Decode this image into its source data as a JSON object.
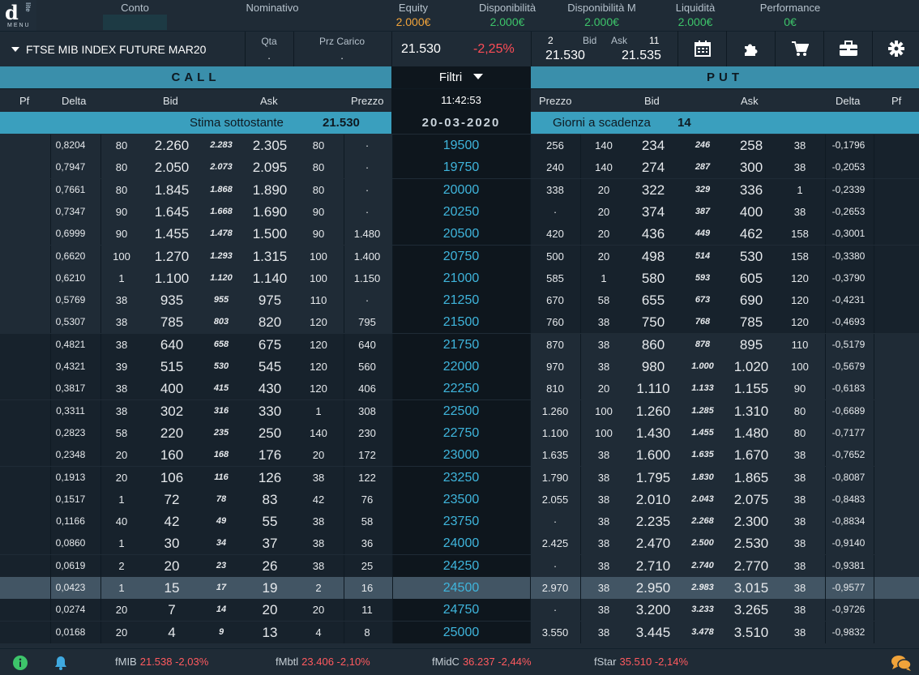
{
  "logo": {
    "letter": "d",
    "side": "lite",
    "menu": "MENU"
  },
  "account": [
    {
      "label": "Conto",
      "value": ""
    },
    {
      "label": "Nominativo",
      "value": ""
    },
    {
      "label": "Equity",
      "value": "2.000€"
    },
    {
      "label": "Disponibilità",
      "value": "2.000€"
    },
    {
      "label": "Disponibilità M",
      "value": "2.000€"
    },
    {
      "label": "Liquidità",
      "value": "2.000€"
    },
    {
      "label": "Performance",
      "value": "0€"
    }
  ],
  "colors": {
    "equity": "#f0a33a",
    "green": "#3dc46a",
    "red": "#ff4d57",
    "accent": "#3a8fab",
    "strike": "#3fb5dc"
  },
  "instrument": {
    "name": "FTSE MIB INDEX FUTURE MAR20",
    "qta_label": "Qta",
    "qta_value": ".",
    "prz_label": "Prz Carico",
    "prz_value": ".",
    "last": "21.530",
    "change": "-2,25%",
    "bid_qty": "2",
    "bid_label": "Bid",
    "ask_label": "Ask",
    "ask_qty": "11",
    "bid": "21.530",
    "ask": "21.535"
  },
  "tools": [
    "calendar-icon",
    "puzzle-icon",
    "cart-icon",
    "briefcase-icon",
    "gear-icon"
  ],
  "headers": {
    "call": "CALL",
    "filtri": "Filtri",
    "put": "PUT",
    "time": "11:42:53"
  },
  "columns": {
    "pf": "Pf",
    "delta": "Delta",
    "bid": "Bid",
    "ask": "Ask",
    "prezzo": "Prezzo",
    "prezzo_put": "Prezzo",
    "bid_put": "Bid",
    "ask_put": "Ask",
    "delta_put": "Delta",
    "pf_put": "Pf"
  },
  "info": {
    "stima_label": "Stima sottostante",
    "stima_value": "21.530",
    "date": "20-03-2020",
    "giorni_label": "Giorni a scadenza",
    "giorni_value": "14"
  },
  "rows": [
    [
      "0,8204",
      "80",
      "2.260",
      "2.283",
      "2.305",
      "80",
      "·",
      "19500",
      "256",
      "140",
      "234",
      "246",
      "258",
      "38",
      "-0,1796"
    ],
    [
      "0,7947",
      "80",
      "2.050",
      "2.073",
      "2.095",
      "80",
      "·",
      "19750",
      "240",
      "140",
      "274",
      "287",
      "300",
      "38",
      "-0,2053"
    ],
    [
      "0,7661",
      "80",
      "1.845",
      "1.868",
      "1.890",
      "80",
      "·",
      "20000",
      "338",
      "20",
      "322",
      "329",
      "336",
      "1",
      "-0,2339"
    ],
    [
      "0,7347",
      "90",
      "1.645",
      "1.668",
      "1.690",
      "90",
      "·",
      "20250",
      "·",
      "20",
      "374",
      "387",
      "400",
      "38",
      "-0,2653"
    ],
    [
      "0,6999",
      "90",
      "1.455",
      "1.478",
      "1.500",
      "90",
      "1.480",
      "20500",
      "420",
      "20",
      "436",
      "449",
      "462",
      "158",
      "-0,3001"
    ],
    [
      "0,6620",
      "100",
      "1.270",
      "1.293",
      "1.315",
      "100",
      "1.400",
      "20750",
      "500",
      "20",
      "498",
      "514",
      "530",
      "158",
      "-0,3380"
    ],
    [
      "0,6210",
      "1",
      "1.100",
      "1.120",
      "1.140",
      "100",
      "1.150",
      "21000",
      "585",
      "1",
      "580",
      "593",
      "605",
      "120",
      "-0,3790"
    ],
    [
      "0,5769",
      "38",
      "935",
      "955",
      "975",
      "110",
      "·",
      "21250",
      "670",
      "58",
      "655",
      "673",
      "690",
      "120",
      "-0,4231"
    ],
    [
      "0,5307",
      "38",
      "785",
      "803",
      "820",
      "120",
      "795",
      "21500",
      "760",
      "38",
      "750",
      "768",
      "785",
      "120",
      "-0,4693"
    ],
    [
      "0,4821",
      "38",
      "640",
      "658",
      "675",
      "120",
      "640",
      "21750",
      "870",
      "38",
      "860",
      "878",
      "895",
      "110",
      "-0,5179"
    ],
    [
      "0,4321",
      "39",
      "515",
      "530",
      "545",
      "120",
      "560",
      "22000",
      "970",
      "38",
      "980",
      "1.000",
      "1.020",
      "100",
      "-0,5679"
    ],
    [
      "0,3817",
      "38",
      "400",
      "415",
      "430",
      "120",
      "406",
      "22250",
      "810",
      "20",
      "1.110",
      "1.133",
      "1.155",
      "90",
      "-0,6183"
    ],
    [
      "0,3311",
      "38",
      "302",
      "316",
      "330",
      "1",
      "308",
      "22500",
      "1.260",
      "100",
      "1.260",
      "1.285",
      "1.310",
      "80",
      "-0,6689"
    ],
    [
      "0,2823",
      "58",
      "220",
      "235",
      "250",
      "140",
      "230",
      "22750",
      "1.100",
      "100",
      "1.430",
      "1.455",
      "1.480",
      "80",
      "-0,7177"
    ],
    [
      "0,2348",
      "20",
      "160",
      "168",
      "176",
      "20",
      "172",
      "23000",
      "1.635",
      "38",
      "1.600",
      "1.635",
      "1.670",
      "38",
      "-0,7652"
    ],
    [
      "0,1913",
      "20",
      "106",
      "116",
      "126",
      "38",
      "122",
      "23250",
      "1.790",
      "38",
      "1.795",
      "1.830",
      "1.865",
      "38",
      "-0,8087"
    ],
    [
      "0,1517",
      "1",
      "72",
      "78",
      "83",
      "42",
      "76",
      "23500",
      "2.055",
      "38",
      "2.010",
      "2.043",
      "2.075",
      "38",
      "-0,8483"
    ],
    [
      "0,1166",
      "40",
      "42",
      "49",
      "55",
      "38",
      "58",
      "23750",
      "·",
      "38",
      "2.235",
      "2.268",
      "2.300",
      "38",
      "-0,8834"
    ],
    [
      "0,0860",
      "1",
      "30",
      "34",
      "37",
      "38",
      "36",
      "24000",
      "2.425",
      "38",
      "2.470",
      "2.500",
      "2.530",
      "38",
      "-0,9140"
    ],
    [
      "0,0619",
      "2",
      "20",
      "23",
      "26",
      "38",
      "25",
      "24250",
      "·",
      "38",
      "2.710",
      "2.740",
      "2.770",
      "38",
      "-0,9381"
    ],
    [
      "0,0423",
      "1",
      "15",
      "17",
      "19",
      "2",
      "16",
      "24500",
      "2.970",
      "38",
      "2.950",
      "2.983",
      "3.015",
      "38",
      "-0,9577"
    ],
    [
      "0,0274",
      "20",
      "7",
      "14",
      "20",
      "20",
      "11",
      "24750",
      "·",
      "38",
      "3.200",
      "3.233",
      "3.265",
      "38",
      "-0,9726"
    ],
    [
      "0,0168",
      "20",
      "4",
      "9",
      "13",
      "4",
      "8",
      "25000",
      "3.550",
      "38",
      "3.445",
      "3.478",
      "3.510",
      "38",
      "-0,9832"
    ]
  ],
  "footer": [
    {
      "label": "fMIB",
      "value": "21.538 -2,03%"
    },
    {
      "label": "fMbtl",
      "value": "23.406 -2,10%"
    },
    {
      "label": "fMidC",
      "value": "36.237 -2,44%"
    },
    {
      "label": "fStar",
      "value": "35.510 -2,14%"
    }
  ]
}
